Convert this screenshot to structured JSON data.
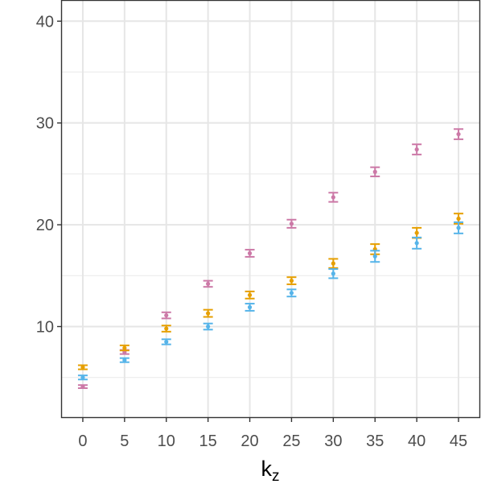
{
  "chart_data": {
    "type": "scatter",
    "xlabel": "k",
    "xlabel_subscript": "z",
    "ylabel": "",
    "xlim": [
      -2.5,
      47.5
    ],
    "ylim": [
      1.1,
      42
    ],
    "x_ticks": [
      "0",
      "5",
      "10",
      "15",
      "20",
      "25",
      "30",
      "35",
      "40",
      "45"
    ],
    "y_ticks": [
      "10",
      "20",
      "30",
      "40"
    ],
    "y_tick_values": [
      10,
      20,
      30,
      40
    ],
    "y_minor_gridlines": [
      5,
      15,
      25,
      35
    ],
    "grid": true,
    "legend": "none",
    "error_bars": true,
    "series": [
      {
        "color": "#CC79A7",
        "x": [
          0,
          5,
          10,
          15,
          20,
          25,
          30,
          35,
          40,
          45
        ],
        "y": [
          4.1,
          7.5,
          11.1,
          14.2,
          17.2,
          20.1,
          22.7,
          25.2,
          27.4,
          28.9
        ],
        "err": [
          0.15,
          0.2,
          0.3,
          0.3,
          0.35,
          0.4,
          0.45,
          0.45,
          0.5,
          0.5
        ]
      },
      {
        "color": "#E69F00",
        "x": [
          0,
          5,
          10,
          15,
          20,
          25,
          30,
          35,
          40,
          45
        ],
        "y": [
          6.0,
          7.9,
          9.8,
          11.3,
          13.1,
          14.5,
          16.2,
          17.6,
          19.2,
          20.6
        ],
        "err": [
          0.2,
          0.25,
          0.3,
          0.35,
          0.35,
          0.35,
          0.45,
          0.5,
          0.5,
          0.5
        ]
      },
      {
        "color": "#56B4E9",
        "x": [
          0,
          5,
          10,
          15,
          20,
          25,
          30,
          35,
          40,
          45
        ],
        "y": [
          5.0,
          6.7,
          8.5,
          10.0,
          11.9,
          13.3,
          15.2,
          16.9,
          18.2,
          19.7
        ],
        "err": [
          0.2,
          0.2,
          0.25,
          0.3,
          0.35,
          0.35,
          0.45,
          0.55,
          0.55,
          0.55
        ]
      }
    ]
  }
}
